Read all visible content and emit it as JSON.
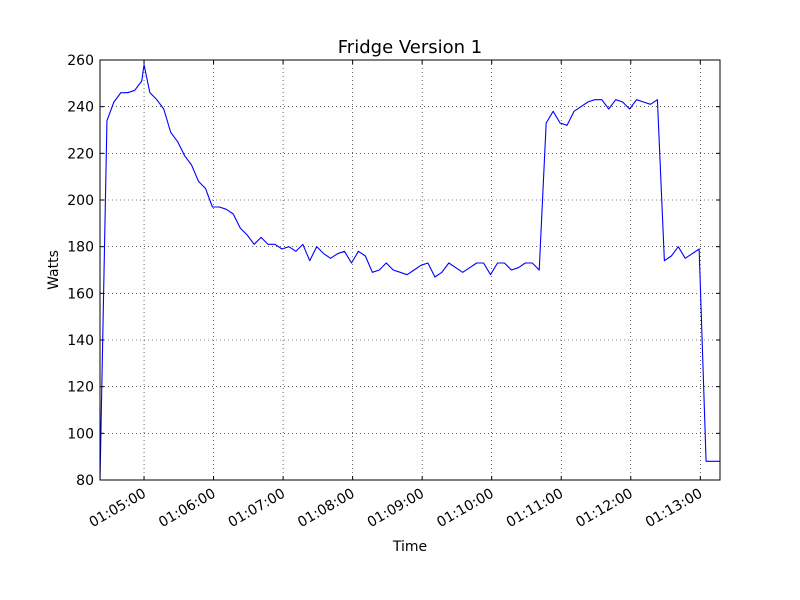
{
  "chart_data": {
    "type": "line",
    "title": "Fridge Version 1",
    "xlabel": "Time",
    "ylabel": "Watts",
    "ylim": [
      80,
      260
    ],
    "xlim": [
      "01:04:22",
      "01:13:17"
    ],
    "grid": true,
    "yticks": [
      80,
      100,
      120,
      140,
      160,
      180,
      200,
      220,
      240,
      260
    ],
    "xticks": [
      "01:05:00",
      "01:06:00",
      "01:07:00",
      "01:08:00",
      "01:09:00",
      "01:10:00",
      "01:11:00",
      "01:12:00",
      "01:13:00"
    ],
    "colors": {
      "line": "#0000ff",
      "grid": "#000000"
    },
    "series": [
      {
        "x": [
          "01:04:22",
          "01:04:28",
          "01:04:34",
          "01:04:40",
          "01:04:46",
          "01:04:52",
          "01:04:58",
          "01:05:00",
          "01:05:05",
          "01:05:11",
          "01:05:17",
          "01:05:23",
          "01:05:29",
          "01:05:35",
          "01:05:41",
          "01:05:47",
          "01:05:53",
          "01:05:59",
          "01:06:05",
          "01:06:11",
          "01:06:17",
          "01:06:23",
          "01:06:29",
          "01:06:35",
          "01:06:41",
          "01:06:47",
          "01:06:53",
          "01:06:59",
          "01:07:05",
          "01:07:11",
          "01:07:17",
          "01:07:23",
          "01:07:29",
          "01:07:35",
          "01:07:41",
          "01:07:47",
          "01:07:53",
          "01:07:59",
          "01:08:05",
          "01:08:11",
          "01:08:17",
          "01:08:23",
          "01:08:29",
          "01:08:35",
          "01:08:41",
          "01:08:47",
          "01:08:53",
          "01:08:59",
          "01:09:05",
          "01:09:11",
          "01:09:17",
          "01:09:23",
          "01:09:29",
          "01:09:35",
          "01:09:41",
          "01:09:47",
          "01:09:53",
          "01:09:59",
          "01:10:05",
          "01:10:11",
          "01:10:17",
          "01:10:23",
          "01:10:29",
          "01:10:35",
          "01:10:41",
          "01:10:47",
          "01:10:53",
          "01:10:59",
          "01:11:05",
          "01:11:11",
          "01:11:17",
          "01:11:23",
          "01:11:29",
          "01:11:35",
          "01:11:41",
          "01:11:47",
          "01:11:53",
          "01:11:59",
          "01:12:05",
          "01:12:11",
          "01:12:17",
          "01:12:23",
          "01:12:29",
          "01:12:35",
          "01:12:41",
          "01:12:47",
          "01:12:53",
          "01:12:59",
          "01:13:05",
          "01:13:11",
          "01:13:17"
        ],
        "y": [
          80,
          234,
          242,
          246,
          246,
          247,
          251,
          258,
          246,
          243,
          239,
          229,
          225,
          219,
          215,
          208,
          205,
          197,
          197,
          196,
          194,
          188,
          185,
          181,
          184,
          181,
          181,
          179,
          180,
          178,
          181,
          174,
          180,
          177,
          175,
          177,
          178,
          173,
          178,
          176,
          169,
          170,
          173,
          170,
          169,
          168,
          170,
          172,
          173,
          167,
          169,
          173,
          171,
          169,
          171,
          173,
          173,
          168,
          173,
          173,
          170,
          171,
          173,
          173,
          170,
          233,
          238,
          233,
          232,
          238,
          240,
          242,
          243,
          243,
          239,
          243,
          242,
          239,
          243,
          242,
          241,
          243,
          174,
          176,
          180,
          175,
          177,
          179,
          88,
          88,
          88
        ]
      }
    ]
  }
}
